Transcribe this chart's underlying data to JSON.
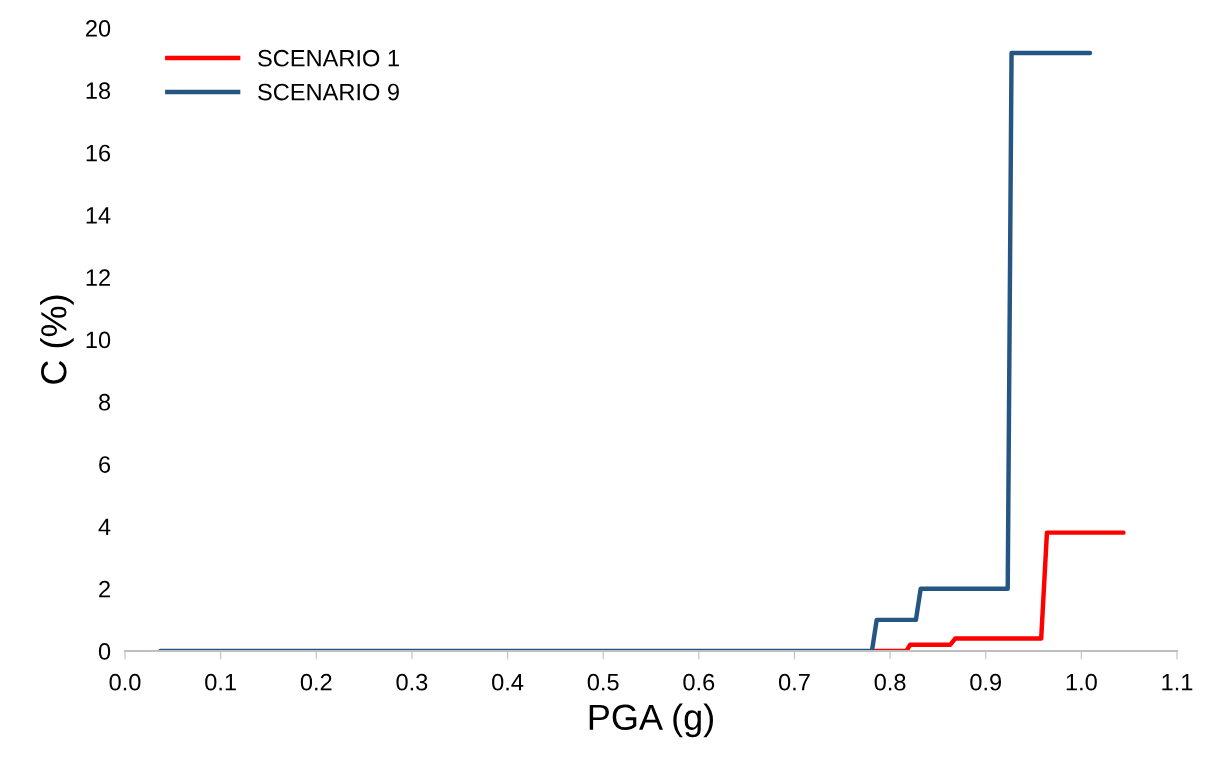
{
  "chart_data": {
    "type": "line",
    "xlabel": "PGA (g)",
    "ylabel": "C (%)",
    "xlim": [
      0.0,
      1.1
    ],
    "xticks": [
      {
        "value": 0.0,
        "label": "0.0"
      },
      {
        "value": 0.1,
        "label": "0.1"
      },
      {
        "value": 0.2,
        "label": "0.2"
      },
      {
        "value": 0.3,
        "label": "0.3"
      },
      {
        "value": 0.4,
        "label": "0.4"
      },
      {
        "value": 0.5,
        "label": "0.5"
      },
      {
        "value": 0.6,
        "label": "0.6"
      },
      {
        "value": 0.7,
        "label": "0.7"
      },
      {
        "value": 0.8,
        "label": "0.8"
      },
      {
        "value": 0.9,
        "label": "0.9"
      },
      {
        "value": 1.0,
        "label": "1.0"
      },
      {
        "value": 1.1,
        "label": "1.1"
      }
    ],
    "ylim": [
      0,
      20
    ],
    "yticks": [
      0,
      2,
      4,
      6,
      8,
      10,
      12,
      14,
      16,
      18,
      20
    ],
    "grid": false,
    "legend": "top left",
    "marker": "none",
    "line_style": "solid",
    "series": [
      {
        "name": "SCENARIO 1",
        "color": "#ff0000",
        "x": [
          0.781,
          0.817,
          0.821,
          0.863,
          0.868,
          0.958,
          0.964,
          1.044
        ],
        "values": [
          0,
          0,
          0.2,
          0.2,
          0.4,
          0.4,
          3.8,
          3.8
        ]
      },
      {
        "name": "SCENARIO 9",
        "color": "#255683",
        "x": [
          0.037,
          0.781,
          0.786,
          0.827,
          0.832,
          0.923,
          0.927,
          1.009
        ],
        "values": [
          0,
          0,
          1,
          1,
          2,
          2,
          19.2,
          19.2
        ]
      }
    ]
  }
}
